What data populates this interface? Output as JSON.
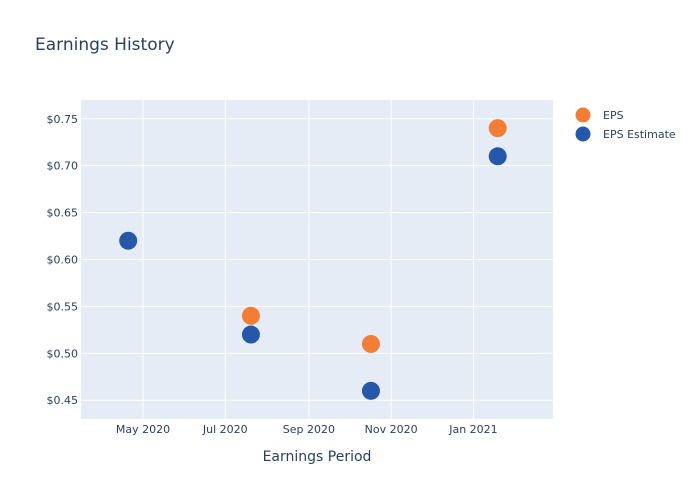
{
  "chart_data": {
    "type": "scatter",
    "title": "Earnings History",
    "xlabel": "Earnings Period",
    "ylabel": "",
    "x_tick_labels": [
      "May 2020",
      "Jul 2020",
      "Sep 2020",
      "Nov 2020",
      "Jan 2021"
    ],
    "x_ticks": [
      "2020-05-01",
      "2020-07-01",
      "2020-09-01",
      "2020-11-01",
      "2021-01-01"
    ],
    "xlim": [
      "2020-03-16",
      "2021-03-01"
    ],
    "y_tick_labels": [
      "$0.45",
      "$0.50",
      "$0.55",
      "$0.60",
      "$0.65",
      "$0.70",
      "$0.75"
    ],
    "y_ticks": [
      0.45,
      0.5,
      0.55,
      0.6,
      0.65,
      0.7,
      0.75
    ],
    "ylim": [
      0.43,
      0.77
    ],
    "grid": true,
    "legend_position": "top-right",
    "series": [
      {
        "name": "EPS",
        "color": "#f47d36",
        "points": [
          {
            "x": "2020-07-20",
            "y": 0.54
          },
          {
            "x": "2020-10-17",
            "y": 0.51
          },
          {
            "x": "2021-01-19",
            "y": 0.74
          }
        ]
      },
      {
        "name": "EPS Estimate",
        "color": "#2558a8",
        "points": [
          {
            "x": "2020-04-20",
            "y": 0.62
          },
          {
            "x": "2020-07-20",
            "y": 0.52
          },
          {
            "x": "2020-10-17",
            "y": 0.46
          },
          {
            "x": "2021-01-19",
            "y": 0.71
          }
        ]
      }
    ]
  },
  "colors": {
    "plot_background": "#e5ecf6",
    "grid": "#ffffff",
    "text": "#2a3f5f"
  }
}
